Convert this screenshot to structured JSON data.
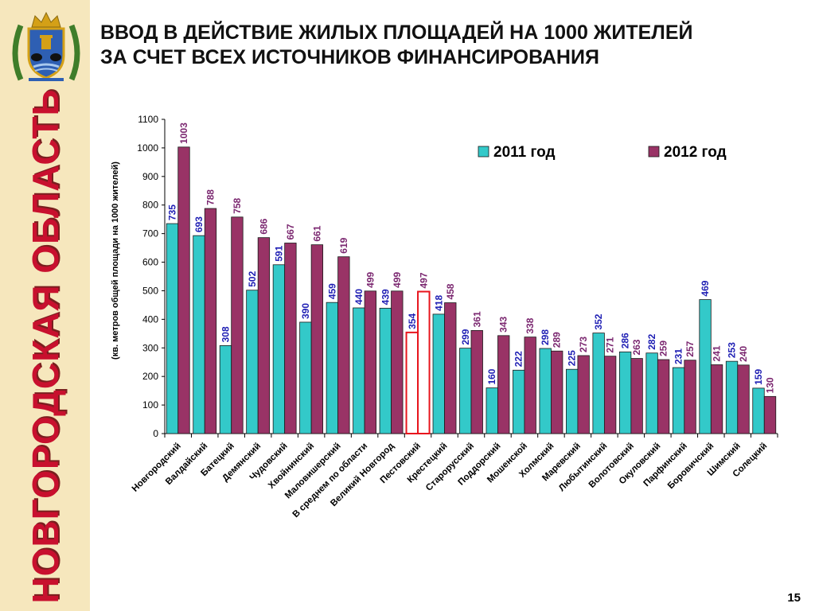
{
  "sidebar": {
    "title": "НОВГОРОДСКАЯ ОБЛАСТЬ"
  },
  "header": {
    "title_line1": "ВВОД  В ДЕЙСТВИЕ ЖИЛЫХ ПЛОЩАДЕЙ НА 1000 ЖИТЕЛЕЙ",
    "title_line2": "ЗА СЧЕТ ВСЕХ ИСТОЧНИКОВ ФИНАНСИРОВАНИЯ"
  },
  "page_number": "15",
  "colors": {
    "series_2011": "#33c9c9",
    "series_2012": "#993366",
    "highlight": "#e8151d",
    "label_2011": "#1f1fb4",
    "label_2012": "#7b2770",
    "sidebar_bg": "#f6e7bd",
    "sidebar_text": "#c8102e"
  },
  "chart_data": {
    "type": "bar",
    "ylabel": "(кв. метров общей площади на 1000 жителей)",
    "ylim": [
      0,
      1100
    ],
    "yticks": [
      0,
      100,
      200,
      300,
      400,
      500,
      600,
      700,
      800,
      900,
      1000,
      1100
    ],
    "legend_position": "top-right",
    "highlighted_category": "Пестовский",
    "categories": [
      "Новгородский",
      "Валдайский",
      "Батецкий",
      "Демянский",
      "Чудовский",
      "Хвойнинский",
      "Маловишерский",
      "В среднем по области",
      "Великий Новгород",
      "Пестовский",
      "Крестецкий",
      "Старорусский",
      "Поддорский",
      "Мошенской",
      "Холмский",
      "Маревский",
      "Любытинский",
      "Волотовский",
      "Окуловский",
      "Парфинский",
      "Боровичский",
      "Шимский",
      "Солецкий"
    ],
    "series": [
      {
        "name": "2011 год",
        "values": [
          735,
          693,
          308,
          502,
          591,
          390,
          459,
          440,
          439,
          354,
          418,
          299,
          160,
          222,
          298,
          225,
          352,
          286,
          282,
          231,
          469,
          253,
          159
        ]
      },
      {
        "name": "2012 год",
        "values": [
          1003,
          788,
          758,
          686,
          667,
          661,
          619,
          499,
          499,
          497,
          458,
          361,
          343,
          338,
          289,
          273,
          271,
          263,
          259,
          257,
          241,
          240,
          130
        ]
      }
    ]
  }
}
